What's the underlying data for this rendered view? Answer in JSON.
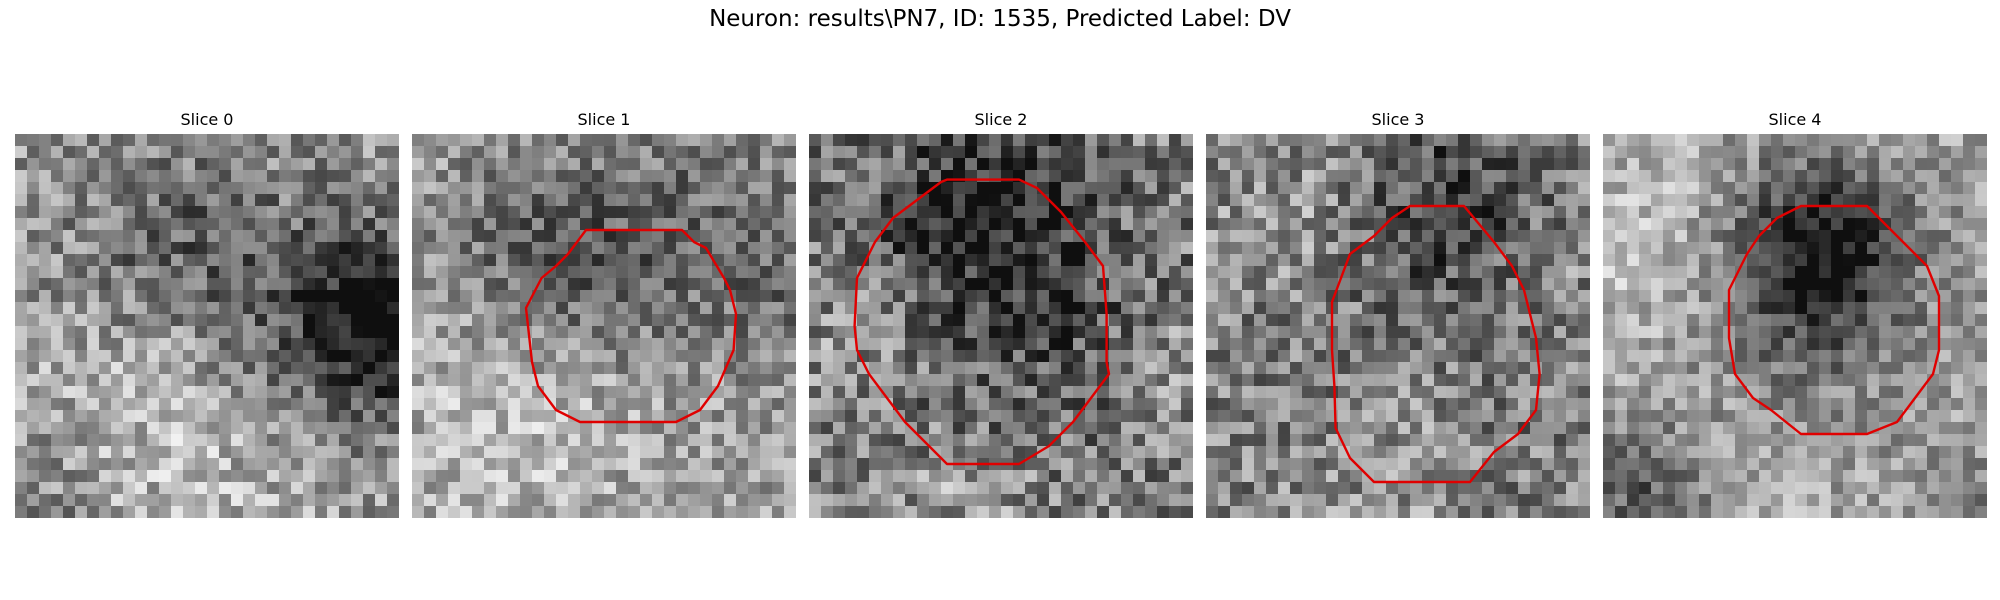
{
  "figure": {
    "title": "Neuron: results\\PN7, ID: 1535, Predicted Label: DV"
  },
  "panels": [
    {
      "title": "Slice 0",
      "icon": "grayscale-microscopy-patch",
      "has_contour": false,
      "contour_color": "#e00000"
    },
    {
      "title": "Slice 1",
      "icon": "grayscale-microscopy-patch-with-red-contour",
      "has_contour": true,
      "contour_color": "#e00000"
    },
    {
      "title": "Slice 2",
      "icon": "grayscale-microscopy-patch-with-red-contour",
      "has_contour": true,
      "contour_color": "#e00000"
    },
    {
      "title": "Slice 3",
      "icon": "grayscale-microscopy-patch-with-red-contour",
      "has_contour": true,
      "contour_color": "#e00000"
    },
    {
      "title": "Slice 4",
      "icon": "grayscale-microscopy-patch-with-red-contour",
      "has_contour": true,
      "contour_color": "#e00000"
    }
  ]
}
